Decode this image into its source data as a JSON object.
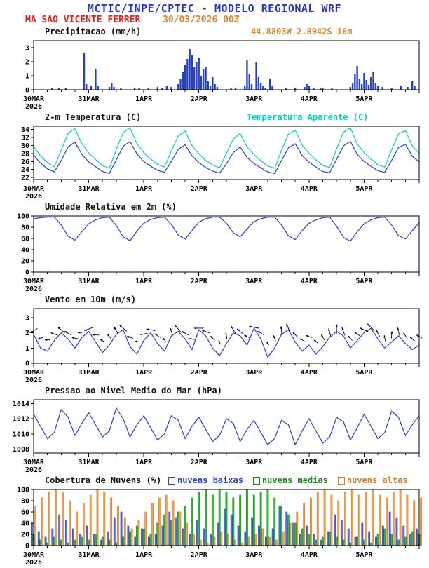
{
  "header": {
    "title": "MCTIC/INPE/CPTEC - MODELO REGIONAL WRF",
    "station": "MA SAO VICENTE FERRER",
    "run": "30/03/2026 00Z",
    "coords": "44.8803W 2.8942S 16m"
  },
  "colors": {
    "title_blue": "#2a35c8",
    "station_red": "#dd2222",
    "orange_text": "#e8832a",
    "line_blue": "#2440d0",
    "cyan": "#00cfc4",
    "green": "#149114",
    "cloud_orange": "#e0791c",
    "axis": "#000000"
  },
  "x_axis": {
    "hours_total": 168,
    "step": 3,
    "minor_every": 6,
    "ticks": [
      {
        "h": 0,
        "label": "30MAR",
        "year": "2026"
      },
      {
        "h": 24,
        "label": "31MAR"
      },
      {
        "h": 48,
        "label": "1APR"
      },
      {
        "h": 72,
        "label": "2APR"
      },
      {
        "h": 96,
        "label": "3APR"
      },
      {
        "h": 120,
        "label": "4APR"
      },
      {
        "h": 144,
        "label": "5APR"
      }
    ]
  },
  "chart_data": [
    {
      "name": "precipitacao",
      "type": "bar",
      "title": "Precipitacao (mm/h)",
      "ylim": [
        0,
        3.5
      ],
      "yticks": [
        0,
        1,
        2,
        3
      ],
      "color": "#2440d0",
      "bars": [
        [
          8,
          0.1
        ],
        [
          11,
          0.15
        ],
        [
          14,
          0.1
        ],
        [
          22,
          2.6
        ],
        [
          23,
          0.4
        ],
        [
          25,
          0.3
        ],
        [
          27,
          1.5
        ],
        [
          28,
          0.3
        ],
        [
          33,
          0.2
        ],
        [
          34,
          0.45
        ],
        [
          35,
          0.2
        ],
        [
          38,
          0.1
        ],
        [
          44,
          0.15
        ],
        [
          46,
          0.1
        ],
        [
          50,
          0.12
        ],
        [
          54,
          0.2
        ],
        [
          56,
          0.1
        ],
        [
          58,
          0.3
        ],
        [
          60,
          0.2
        ],
        [
          63,
          0.4
        ],
        [
          64,
          0.8
        ],
        [
          65,
          1.3
        ],
        [
          66,
          1.8
        ],
        [
          67,
          2.2
        ],
        [
          68,
          2.9
        ],
        [
          69,
          2.5
        ],
        [
          70,
          1.6
        ],
        [
          71,
          2.0
        ],
        [
          72,
          2.3
        ],
        [
          73,
          1.0
        ],
        [
          74,
          1.5
        ],
        [
          75,
          1.6
        ],
        [
          76,
          0.6
        ],
        [
          77,
          0.3
        ],
        [
          78,
          0.9
        ],
        [
          79,
          0.4
        ],
        [
          80,
          0.2
        ],
        [
          86,
          0.1
        ],
        [
          88,
          0.15
        ],
        [
          92,
          0.3
        ],
        [
          93,
          2.1
        ],
        [
          94,
          1.1
        ],
        [
          95,
          0.4
        ],
        [
          97,
          2.0
        ],
        [
          98,
          0.9
        ],
        [
          99,
          0.5
        ],
        [
          100,
          0.25
        ],
        [
          101,
          0.15
        ],
        [
          103,
          0.8
        ],
        [
          104,
          0.3
        ],
        [
          110,
          0.1
        ],
        [
          114,
          0.15
        ],
        [
          118,
          0.2
        ],
        [
          119,
          0.4
        ],
        [
          120,
          0.25
        ],
        [
          122,
          0.12
        ],
        [
          125,
          0.15
        ],
        [
          126,
          0.1
        ],
        [
          130,
          0.1
        ],
        [
          138,
          0.2
        ],
        [
          139,
          0.5
        ],
        [
          140,
          1.1
        ],
        [
          141,
          1.7
        ],
        [
          142,
          0.8
        ],
        [
          143,
          0.4
        ],
        [
          144,
          1.2
        ],
        [
          145,
          0.7
        ],
        [
          146,
          0.35
        ],
        [
          147,
          0.9
        ],
        [
          148,
          1.3
        ],
        [
          149,
          0.5
        ],
        [
          150,
          0.3
        ],
        [
          152,
          0.2
        ],
        [
          156,
          0.1
        ],
        [
          160,
          0.3
        ],
        [
          163,
          0.2
        ],
        [
          165,
          0.6
        ],
        [
          166,
          0.3
        ]
      ]
    },
    {
      "name": "temperatura",
      "type": "line",
      "title": "2-m Temperatura (C)",
      "title2": "Temperatura Aparente (C)",
      "ylim": [
        21.5,
        34.8
      ],
      "yticks": [
        22,
        24,
        26,
        28,
        30,
        32,
        34
      ],
      "series": [
        {
          "name": "2-m Temperatura (C)",
          "color": "#2440d0",
          "values": [
            27.6,
            25.6,
            24.2,
            23.4,
            26.2,
            29.6,
            30.8,
            27.8,
            25.9,
            24.7,
            23.5,
            23.0,
            26.4,
            29.8,
            31.0,
            27.9,
            26.0,
            24.8,
            23.8,
            23.3,
            26.0,
            29.0,
            30.2,
            27.4,
            25.7,
            24.5,
            23.6,
            23.1,
            25.4,
            28.2,
            29.6,
            27.0,
            25.5,
            24.4,
            23.4,
            23.0,
            26.2,
            29.4,
            30.4,
            27.5,
            25.8,
            24.6,
            23.5,
            23.2,
            26.5,
            29.9,
            31.0,
            27.8,
            26.0,
            24.8,
            23.7,
            23.3,
            26.3,
            29.5,
            30.3,
            27.3,
            25.9
          ]
        },
        {
          "name": "Temperatura Aparente (C)",
          "color": "#00cfc4",
          "values": [
            29.8,
            27.4,
            25.7,
            24.7,
            28.8,
            33.0,
            34.2,
            30.4,
            28.1,
            26.5,
            25.0,
            24.3,
            29.0,
            33.2,
            34.4,
            30.5,
            28.2,
            26.6,
            25.3,
            24.6,
            28.6,
            32.4,
            33.6,
            30.0,
            27.9,
            26.3,
            25.1,
            24.4,
            28.0,
            31.6,
            33.0,
            29.6,
            27.7,
            26.2,
            24.9,
            24.3,
            28.8,
            32.8,
            33.8,
            30.1,
            28.0,
            26.4,
            25.0,
            24.5,
            29.1,
            33.3,
            34.4,
            30.4,
            28.2,
            26.6,
            25.2,
            24.6,
            28.9,
            32.9,
            33.7,
            29.9,
            28.1
          ]
        }
      ]
    },
    {
      "name": "umidade",
      "type": "line",
      "title": "Umidade Relativa em 2m (%)",
      "ylim": [
        0,
        100
      ],
      "yticks": [
        0,
        20,
        40,
        60,
        80,
        100
      ],
      "series": [
        {
          "name": "Umidade Relativa em 2m (%)",
          "color": "#2440d0",
          "values": [
            95,
            97,
            98,
            98,
            84,
            64,
            57,
            72,
            86,
            93,
            97,
            98,
            83,
            63,
            56,
            73,
            87,
            94,
            97,
            98,
            85,
            66,
            59,
            74,
            89,
            95,
            98,
            98,
            87,
            70,
            63,
            77,
            90,
            95,
            98,
            98,
            84,
            65,
            58,
            74,
            87,
            93,
            97,
            98,
            82,
            62,
            55,
            72,
            86,
            93,
            97,
            98,
            84,
            65,
            59,
            74,
            88
          ]
        }
      ]
    },
    {
      "name": "vento",
      "type": "wind",
      "title": "Vento em 10m (m/s)",
      "ylim": [
        0,
        3.6
      ],
      "yticks": [
        0,
        1,
        2,
        3
      ],
      "arrow_color": "#000000",
      "series": [
        {
          "name": "Vento em 10m (m/s)",
          "color": "#2440d0",
          "values": [
            1.9,
            1.0,
            0.8,
            1.5,
            2.0,
            1.6,
            1.0,
            1.7,
            2.1,
            1.4,
            0.7,
            1.2,
            1.9,
            2.2,
            1.1,
            0.6,
            1.5,
            2.0,
            1.3,
            0.8,
            1.8,
            2.1,
            1.6,
            0.9,
            2.2,
            1.8,
            1.0,
            0.5,
            1.3,
            2.0,
            1.8,
            1.2,
            2.3,
            1.6,
            0.4,
            1.0,
            1.9,
            2.2,
            1.4,
            0.8,
            1.2,
            0.6,
            1.1,
            1.7,
            2.1,
            1.8,
            1.0,
            1.5,
            2.0,
            2.3,
            1.6,
            1.0,
            1.4,
            1.8,
            1.3,
            0.9,
            1.2
          ]
        }
      ],
      "dirs_deg": [
        60,
        75,
        90,
        110,
        130,
        120,
        100,
        85,
        70,
        95,
        120,
        140,
        150,
        130,
        110,
        95,
        80,
        100,
        125,
        145,
        160,
        140,
        120,
        100,
        90,
        110,
        135,
        155,
        170,
        150,
        130,
        115,
        100,
        120,
        140,
        160,
        175,
        155,
        135,
        120,
        110,
        130,
        150,
        165,
        180,
        160,
        140,
        125,
        115,
        135,
        150,
        170,
        185,
        165,
        145,
        130,
        120
      ]
    },
    {
      "name": "pressao",
      "type": "line",
      "title": "Pressao ao Nivel Medio do Mar (hPa)",
      "ylim": [
        1007.5,
        1014.5
      ],
      "yticks": [
        1008,
        1010,
        1012,
        1014
      ],
      "series": [
        {
          "name": "Pressao ao Nivel Medio do Mar (hPa)",
          "color": "#2440d0",
          "values": [
            1012.6,
            1011.0,
            1009.4,
            1010.2,
            1013.2,
            1012.2,
            1009.8,
            1011.4,
            1012.8,
            1011.2,
            1009.6,
            1010.4,
            1013.4,
            1012.0,
            1009.6,
            1011.2,
            1012.4,
            1010.8,
            1009.2,
            1010.0,
            1012.4,
            1011.8,
            1009.4,
            1011.0,
            1012.2,
            1010.6,
            1009.0,
            1009.8,
            1012.0,
            1011.4,
            1009.0,
            1010.6,
            1011.8,
            1010.2,
            1008.6,
            1009.4,
            1011.8,
            1011.2,
            1008.6,
            1010.4,
            1012.0,
            1010.4,
            1008.8,
            1009.6,
            1012.2,
            1011.6,
            1009.2,
            1010.8,
            1012.6,
            1011.0,
            1009.4,
            1010.2,
            1013.0,
            1012.2,
            1009.8,
            1011.2,
            1012.4
          ]
        }
      ]
    },
    {
      "name": "nuvens",
      "type": "groupbar",
      "title": "Cobertura de Nuvens (%)",
      "ylim": [
        0,
        100
      ],
      "yticks": [
        0,
        20,
        40,
        60,
        80,
        100
      ],
      "legend": [
        {
          "label": "nuvens baixas",
          "color": "#2440d0"
        },
        {
          "label": "nuvens medias",
          "color": "#149114"
        },
        {
          "label": "nuvens altas",
          "color": "#e0791c"
        }
      ],
      "series": [
        {
          "name": "nuvens baixas",
          "color": "#2440d0",
          "fill": "#5570dd",
          "values": [
            40,
            25,
            15,
            30,
            55,
            45,
            30,
            20,
            35,
            20,
            10,
            25,
            50,
            60,
            35,
            15,
            30,
            15,
            20,
            35,
            60,
            50,
            30,
            20,
            45,
            30,
            20,
            40,
            65,
            55,
            35,
            25,
            50,
            35,
            15,
            30,
            70,
            60,
            40,
            20,
            35,
            20,
            10,
            25,
            55,
            45,
            30,
            15,
            40,
            25,
            15,
            35,
            60,
            50,
            35,
            20,
            30
          ]
        },
        {
          "name": "nuvens medias",
          "color": "#149114",
          "fill": "#2ebf2e",
          "values": [
            20,
            10,
            5,
            15,
            10,
            5,
            10,
            15,
            10,
            20,
            15,
            10,
            5,
            15,
            25,
            35,
            30,
            20,
            40,
            55,
            45,
            60,
            70,
            85,
            95,
            100,
            90,
            100,
            95,
            85,
            90,
            100,
            90,
            95,
            100,
            85,
            70,
            55,
            40,
            30,
            20,
            10,
            15,
            25,
            15,
            10,
            5,
            15,
            10,
            5,
            20,
            30,
            20,
            10,
            15,
            25,
            20
          ]
        },
        {
          "name": "nuvens altas",
          "color": "#e0791c",
          "fill": "#f2a255",
          "values": [
            70,
            85,
            95,
            100,
            95,
            80,
            60,
            75,
            90,
            100,
            95,
            85,
            70,
            50,
            30,
            45,
            60,
            75,
            85,
            90,
            80,
            60,
            40,
            20,
            10,
            5,
            15,
            25,
            20,
            10,
            5,
            15,
            20,
            30,
            15,
            10,
            25,
            40,
            60,
            75,
            85,
            95,
            100,
            90,
            80,
            95,
            100,
            90,
            95,
            100,
            90,
            85,
            95,
            100,
            90,
            80,
            85
          ]
        }
      ]
    }
  ]
}
